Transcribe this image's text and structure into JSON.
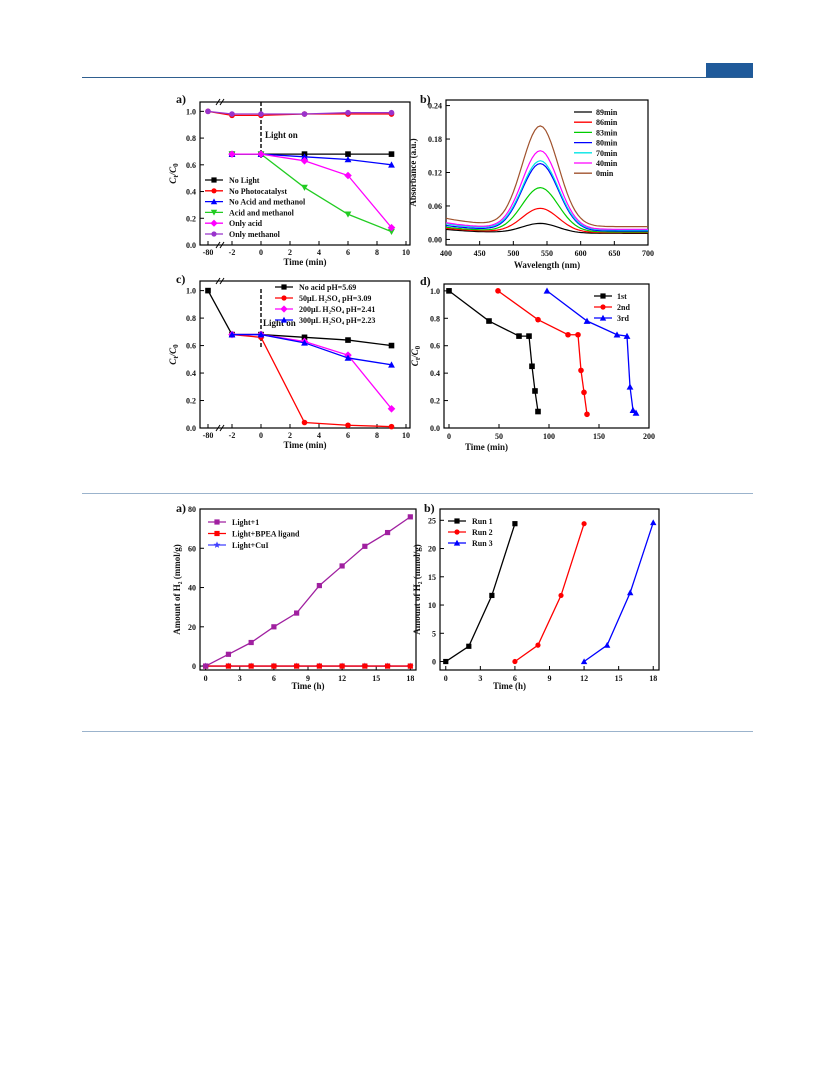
{
  "page": {
    "header_color": "#1f5a9a",
    "rule_color": "#9bb3cc"
  },
  "figures": {
    "upper": {
      "labels": [
        "a)",
        "b)",
        "c)",
        "d)"
      ]
    },
    "lower": {
      "labels": [
        "a)",
        "b)"
      ]
    }
  },
  "chart_data": [
    {
      "id": "fig1a",
      "panel_label": "a)",
      "type": "line",
      "xlabel": "Time (min)",
      "ylabel": "C_t/C_0",
      "annotation": "Light on",
      "xticks": [
        "-80",
        "-2",
        "0",
        "2",
        "4",
        "6",
        "8",
        "10"
      ],
      "yticks": [
        "0.0",
        "0.2",
        "0.4",
        "0.6",
        "0.8",
        "1.0"
      ],
      "ylim": [
        0,
        1.05
      ],
      "series": [
        {
          "name": "No Light",
          "color": "#000000",
          "marker": "square",
          "x": [
            -2,
            0,
            3,
            6,
            9
          ],
          "y": [
            0.68,
            0.68,
            0.68,
            0.68,
            0.68
          ]
        },
        {
          "name": "No Photocatalyst",
          "color": "#ff0000",
          "marker": "circle",
          "x": [
            -80,
            -2,
            0,
            3,
            6,
            9
          ],
          "y": [
            1.0,
            0.97,
            0.97,
            0.98,
            0.98,
            0.98
          ]
        },
        {
          "name": "No Acid and methanol",
          "color": "#0000ff",
          "marker": "triangle",
          "x": [
            -2,
            0,
            3,
            6,
            9
          ],
          "y": [
            0.68,
            0.68,
            0.66,
            0.64,
            0.6
          ]
        },
        {
          "name": "Acid and methanol",
          "color": "#22cc22",
          "marker": "triangle-down",
          "x": [
            -2,
            0,
            3,
            6,
            9
          ],
          "y": [
            0.68,
            0.68,
            0.43,
            0.23,
            0.1
          ]
        },
        {
          "name": "Only acid",
          "color": "#ff00ff",
          "marker": "diamond",
          "x": [
            -2,
            0,
            3,
            6,
            9
          ],
          "y": [
            0.68,
            0.68,
            0.63,
            0.52,
            0.13
          ]
        },
        {
          "name": "Only methanol",
          "color": "#9933cc",
          "marker": "circle",
          "x": [
            -80,
            -2,
            0,
            3,
            6,
            9
          ],
          "y": [
            1.0,
            0.98,
            0.98,
            0.98,
            0.99,
            0.99
          ]
        }
      ]
    },
    {
      "id": "fig1b",
      "panel_label": "b)",
      "type": "line",
      "xlabel": "Wavelength (nm)",
      "ylabel": "Absorbance (a.u.)",
      "xlim": [
        400,
        700
      ],
      "ylim": [
        -0.01,
        0.25
      ],
      "xticks": [
        "400",
        "450",
        "500",
        "550",
        "600",
        "650",
        "700"
      ],
      "yticks": [
        "0.00",
        "0.06",
        "0.12",
        "0.18",
        "0.24"
      ],
      "series": [
        {
          "name": "89min",
          "color": "#000000",
          "peak": 0.028,
          "base": 0.018
        },
        {
          "name": "86min",
          "color": "#ff0000",
          "peak": 0.055,
          "base": 0.02
        },
        {
          "name": "83min",
          "color": "#00cc00",
          "peak": 0.092,
          "base": 0.022
        },
        {
          "name": "80min",
          "color": "#0000ff",
          "peak": 0.135,
          "base": 0.025
        },
        {
          "name": "70min",
          "color": "#00e5e5",
          "peak": 0.14,
          "base": 0.028
        },
        {
          "name": "40min",
          "color": "#ff00ff",
          "peak": 0.158,
          "base": 0.03
        },
        {
          "name": "0min",
          "color": "#a0522d",
          "peak": 0.202,
          "base": 0.038
        }
      ]
    },
    {
      "id": "fig1c",
      "panel_label": "c)",
      "type": "line",
      "xlabel": "Time (min)",
      "ylabel": "C_t/C_0",
      "annotation": "Light on",
      "xticks": [
        "-80",
        "-2",
        "0",
        "2",
        "4",
        "6",
        "8",
        "10"
      ],
      "yticks": [
        "0.0",
        "0.2",
        "0.4",
        "0.6",
        "0.8",
        "1.0"
      ],
      "series": [
        {
          "name": "No acid  pH=5.69",
          "color": "#000000",
          "marker": "square",
          "x": [
            -80,
            -2,
            0,
            3,
            6,
            9
          ],
          "y": [
            1.0,
            0.68,
            0.68,
            0.66,
            0.64,
            0.6
          ]
        },
        {
          "name": "50μL H₂SO₄  pH=3.09",
          "color": "#ff0000",
          "marker": "circle",
          "x": [
            -2,
            0,
            3,
            6,
            9
          ],
          "y": [
            0.68,
            0.66,
            0.04,
            0.02,
            0.01
          ]
        },
        {
          "name": "200μL H₂SO₄  pH=2.41",
          "color": "#ff00ff",
          "marker": "diamond",
          "x": [
            -2,
            0,
            3,
            6,
            9
          ],
          "y": [
            0.68,
            0.68,
            0.63,
            0.53,
            0.14
          ]
        },
        {
          "name": "300μL H₂SO₄  pH=2.23",
          "color": "#0000ff",
          "marker": "triangle",
          "x": [
            -2,
            0,
            3,
            6,
            9
          ],
          "y": [
            0.68,
            0.68,
            0.62,
            0.51,
            0.46
          ]
        }
      ]
    },
    {
      "id": "fig1d",
      "panel_label": "d)",
      "type": "line",
      "xlabel": "Time (min)",
      "ylabel": "C_t/C_0",
      "xlim": [
        -5,
        200
      ],
      "ylim": [
        0,
        1.05
      ],
      "xticks": [
        "0",
        "50",
        "100",
        "150",
        "200"
      ],
      "yticks": [
        "0.0",
        "0.2",
        "0.4",
        "0.6",
        "0.8",
        "1.0"
      ],
      "series": [
        {
          "name": "1st",
          "color": "#000000",
          "marker": "square",
          "x": [
            0,
            40,
            70,
            80,
            83,
            86,
            89
          ],
          "y": [
            1.0,
            0.78,
            0.67,
            0.67,
            0.45,
            0.27,
            0.12
          ]
        },
        {
          "name": "2nd",
          "color": "#ff0000",
          "marker": "circle",
          "x": [
            49,
            89,
            119,
            129,
            132,
            135,
            138
          ],
          "y": [
            1.0,
            0.79,
            0.68,
            0.68,
            0.42,
            0.26,
            0.1
          ]
        },
        {
          "name": "3rd",
          "color": "#0000ff",
          "marker": "triangle",
          "x": [
            98,
            138,
            168,
            178,
            181,
            184,
            187
          ],
          "y": [
            1.0,
            0.78,
            0.68,
            0.67,
            0.3,
            0.13,
            0.11
          ]
        }
      ]
    },
    {
      "id": "fig2a",
      "panel_label": "a)",
      "type": "line",
      "xlabel": "Time (h)",
      "ylabel": "Amount of H₂ (mmol/g)",
      "xlim": [
        -0.5,
        18.5
      ],
      "ylim": [
        -2,
        80
      ],
      "xticks": [
        "0",
        "3",
        "6",
        "9",
        "12",
        "15",
        "18"
      ],
      "yticks": [
        "0",
        "20",
        "40",
        "60",
        "80"
      ],
      "series": [
        {
          "name": "Light+1",
          "color": "#a020a0",
          "marker": "square",
          "x": [
            0,
            2,
            4,
            6,
            8,
            10,
            12,
            14,
            16,
            18
          ],
          "y": [
            0,
            6,
            12,
            20,
            27,
            41,
            51,
            61,
            68,
            76
          ]
        },
        {
          "name": "Light+BPEA ligand",
          "color": "#ff0000",
          "marker": "square",
          "x": [
            0,
            2,
            4,
            6,
            8,
            10,
            12,
            14,
            16,
            18
          ],
          "y": [
            0,
            0,
            0,
            0,
            0,
            0,
            0,
            0,
            0,
            0
          ]
        },
        {
          "name": "Light+CuI",
          "color": "#4040ff",
          "marker": "star",
          "x": [
            0,
            2,
            4,
            6,
            8,
            10,
            12,
            14,
            16,
            18
          ],
          "y": [
            0,
            0,
            0,
            0,
            0,
            0,
            0,
            0,
            0,
            0
          ]
        }
      ]
    },
    {
      "id": "fig2b",
      "panel_label": "b)",
      "type": "line",
      "xlabel": "Time (h)",
      "ylabel": "Amount of H₂ (mmol/g)",
      "xlim": [
        -0.5,
        18.5
      ],
      "ylim": [
        -1.5,
        27
      ],
      "xticks": [
        "0",
        "3",
        "6",
        "9",
        "12",
        "15",
        "18"
      ],
      "yticks": [
        "0",
        "5",
        "10",
        "15",
        "20",
        "25"
      ],
      "series": [
        {
          "name": "Run 1",
          "color": "#000000",
          "marker": "square",
          "x": [
            0,
            2,
            4,
            6
          ],
          "y": [
            0,
            2.7,
            11.7,
            24.4
          ]
        },
        {
          "name": "Run 2",
          "color": "#ff0000",
          "marker": "circle",
          "x": [
            6,
            8,
            10,
            12
          ],
          "y": [
            0,
            2.9,
            11.7,
            24.4
          ]
        },
        {
          "name": "Run 3",
          "color": "#0000ff",
          "marker": "triangle",
          "x": [
            12,
            14,
            16,
            18
          ],
          "y": [
            0,
            2.9,
            12.2,
            24.6
          ]
        }
      ]
    }
  ]
}
